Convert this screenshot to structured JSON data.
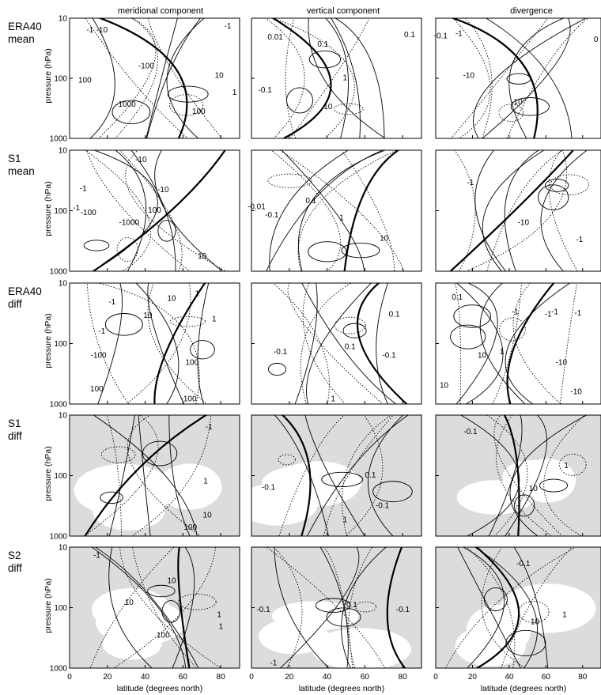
{
  "figure": {
    "column_titles": [
      "meridional component",
      "vertical component",
      "divergence"
    ],
    "row_labels": [
      [
        "ERA40",
        "mean"
      ],
      [
        "S1",
        "mean"
      ],
      [
        "ERA40",
        "diff"
      ],
      [
        "S1",
        "diff"
      ],
      [
        "S2",
        "diff"
      ]
    ],
    "xlabel": "latitude (degrees north)",
    "ylabel": "pressure (hPa)",
    "x_ticks": [
      "0",
      "20",
      "40",
      "60",
      "80"
    ],
    "y_ticks": [
      "10",
      "100",
      "1000"
    ],
    "shaded_rows": [
      3,
      4
    ]
  },
  "chart_data": {
    "type": "contour",
    "layout": "5x3 small multiples",
    "x": {
      "label": "latitude (degrees north)",
      "range": [
        0,
        90
      ],
      "ticks": [
        0,
        20,
        40,
        60,
        80
      ]
    },
    "y": {
      "label": "pressure (hPa)",
      "scale": "log",
      "range": [
        1000,
        10
      ],
      "ticks": [
        10,
        100,
        1000
      ]
    },
    "columns": [
      "meridional component",
      "vertical component",
      "divergence"
    ],
    "contour_styles": {
      "positive": "solid",
      "negative": "dotted",
      "zero": "thick solid"
    },
    "panels": [
      {
        "row": "ERA40 mean",
        "column": "meridional component",
        "labels": [
          "-1",
          "-10",
          "-1",
          "-100",
          "100",
          "-1000",
          "10",
          "1",
          "100"
        ]
      },
      {
        "row": "ERA40 mean",
        "column": "vertical component",
        "labels": [
          "0.01",
          "0.1",
          "0.1",
          "1",
          "-0.1",
          "10"
        ]
      },
      {
        "row": "ERA40 mean",
        "column": "divergence",
        "labels": [
          "-0.1",
          "-1",
          "-10",
          "-10",
          "0"
        ]
      },
      {
        "row": "S1 mean",
        "column": "meridional component",
        "labels": [
          "-10",
          "-1",
          "-1",
          "-100",
          "-1000",
          "-10",
          "10",
          "100"
        ]
      },
      {
        "row": "S1 mean",
        "column": "vertical component",
        "labels": [
          "0.1",
          "1",
          "-0.01",
          "-0.1",
          "10"
        ]
      },
      {
        "row": "S1 mean",
        "column": "divergence",
        "labels": [
          "-1",
          "-10",
          "-1"
        ]
      },
      {
        "row": "ERA40 diff",
        "column": "meridional component",
        "labels": [
          "1",
          "10",
          "-1",
          "10",
          "1",
          "-1",
          "-100",
          "100",
          "100",
          "-100"
        ]
      },
      {
        "row": "ERA40 diff",
        "column": "vertical component",
        "labels": [
          "0.1",
          "0.1",
          "-0.1",
          "-0.1",
          "1"
        ]
      },
      {
        "row": "ERA40 diff",
        "column": "divergence",
        "labels": [
          "0.1",
          "-1",
          "-1",
          "-1",
          "-1",
          "1",
          "-10",
          "10",
          "10",
          "-10"
        ]
      },
      {
        "row": "S1 diff",
        "column": "meridional component",
        "labels": [
          "-1",
          "1",
          "10",
          "100"
        ]
      },
      {
        "row": "S1 diff",
        "column": "vertical component",
        "labels": [
          "0.1",
          "-0.1",
          "-0.1",
          "1"
        ]
      },
      {
        "row": "S1 diff",
        "column": "divergence",
        "labels": [
          "-0.1",
          "10",
          "1"
        ]
      },
      {
        "row": "S2 diff",
        "column": "meridional component",
        "labels": [
          "-1",
          "10",
          "10",
          "1",
          "1",
          "100"
        ]
      },
      {
        "row": "S2 diff",
        "column": "vertical component",
        "labels": [
          "-0.1",
          "0.1",
          "-0.1",
          "-1"
        ]
      },
      {
        "row": "S2 diff",
        "column": "divergence",
        "labels": [
          "-0.1",
          "1",
          "10"
        ]
      }
    ]
  }
}
